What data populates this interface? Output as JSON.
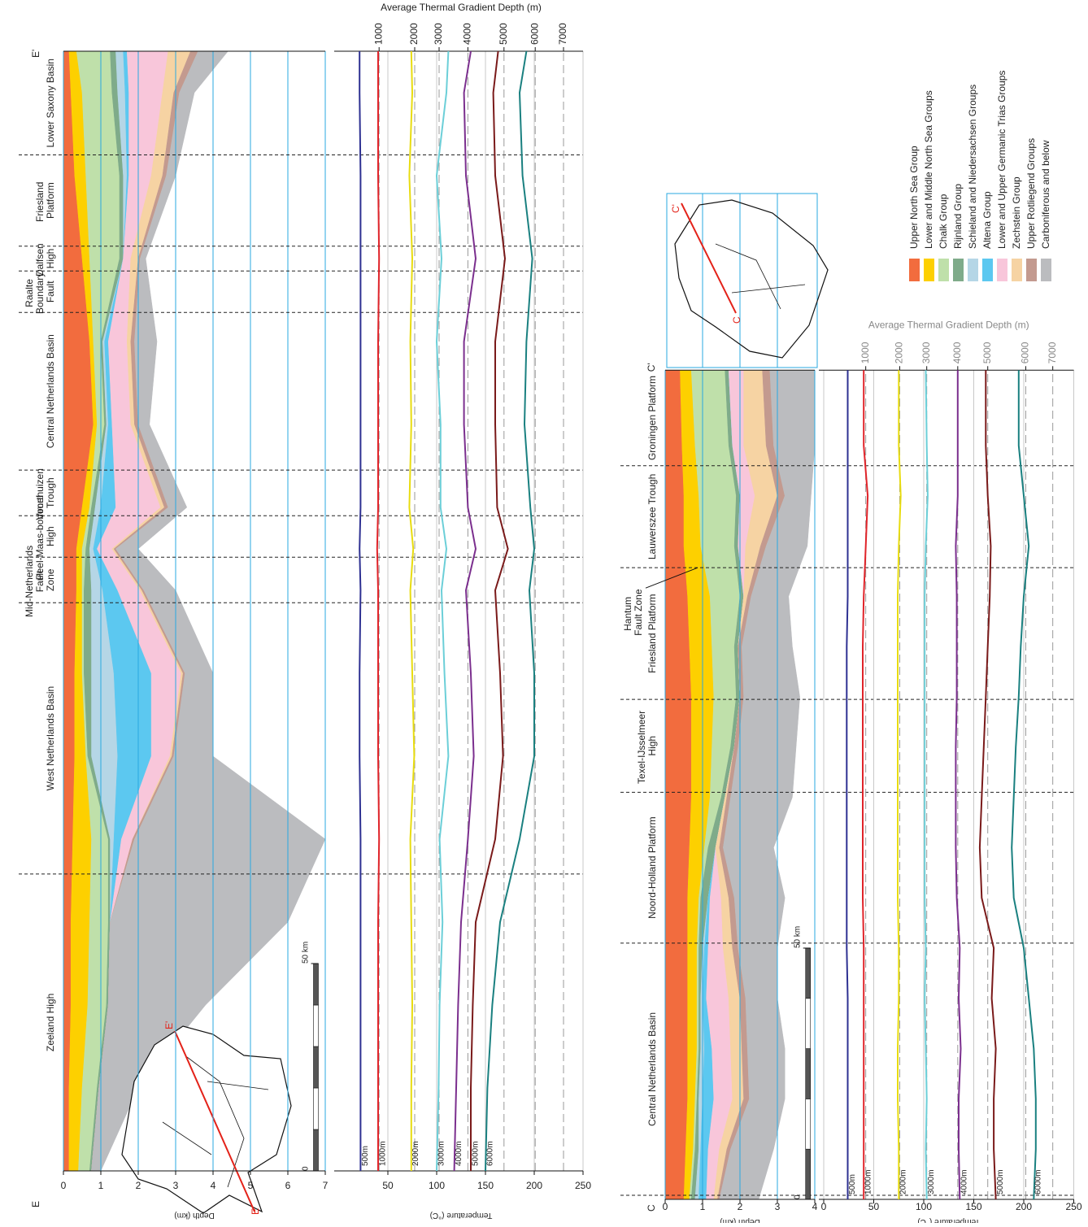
{
  "legend": {
    "layers": [
      {
        "name": "Upper North Sea Group",
        "color": "#f26c3e"
      },
      {
        "name": "Lower and Middle North Sea Groups",
        "color": "#fdd000"
      },
      {
        "name": "Chalk Group",
        "color": "#bfe0aa"
      },
      {
        "name": "Rijnland Group",
        "color": "#7fab8a"
      },
      {
        "name": "Schieland and Niedersachsen Groups",
        "color": "#b5d6e6"
      },
      {
        "name": "Altena Group",
        "color": "#5cc8f0"
      },
      {
        "name": "Lower and Upper Germanic Trias Groups",
        "color": "#f8c6da"
      },
      {
        "name": "Zechstein Group",
        "color": "#f6d3a3"
      },
      {
        "name": "Upper Rotliegend Groups",
        "color": "#c39a8f"
      },
      {
        "name": "Carboniferous and below",
        "color": "#bbbcbf"
      }
    ]
  },
  "chart_data": [
    {
      "type": "cross-section",
      "start_label": "E",
      "end_label": "E'",
      "x": [
        0,
        20,
        40,
        60,
        80,
        100,
        120,
        140,
        150,
        160,
        180,
        200,
        220,
        240,
        260,
        270
      ],
      "xlim": [
        0,
        270
      ],
      "ylabel": "Depth (km)",
      "ylim": [
        0,
        7
      ],
      "yticks": [
        0,
        1,
        2,
        3,
        4,
        5,
        6,
        7
      ],
      "grid": true,
      "layer_thickness": [
        [
          0.15,
          0.15,
          0.2,
          0.2,
          0.25,
          0.3,
          0.3,
          0.35,
          0.35,
          0.5,
          0.8,
          0.7,
          0.5,
          0.3,
          0.2,
          0.15
        ],
        [
          0.25,
          0.35,
          0.45,
          0.5,
          0.5,
          0.3,
          0.2,
          0.15,
          0.15,
          0.2,
          0.1,
          0.1,
          0.2,
          0.3,
          0.3,
          0.2
        ],
        [
          0.3,
          0.4,
          0.5,
          0.5,
          0.45,
          0.05,
          0.05,
          0.05,
          0.1,
          0.05,
          0.2,
          0.2,
          0.8,
          0.9,
          0.8,
          0.9
        ],
        [
          0.05,
          0.05,
          0.05,
          0.05,
          0.05,
          0.1,
          0.2,
          0.2,
          0.1,
          0.1,
          0.05,
          0.05,
          0.1,
          0.1,
          0.15,
          0.15
        ],
        [
          0,
          0,
          0,
          0,
          0.1,
          0.7,
          0.6,
          0.3,
          0.1,
          0.15,
          0.05,
          0.05,
          0,
          0.1,
          0.2,
          0.2
        ],
        [
          0,
          0,
          0,
          0,
          0.2,
          0.9,
          1.0,
          0.4,
          0.1,
          0.4,
          0.1,
          0.1,
          0,
          0.05,
          0.1,
          0.1
        ],
        [
          0,
          0,
          0,
          0,
          0.3,
          0.5,
          0.8,
          0.6,
          0.4,
          1.2,
          0.5,
          0.5,
          0.2,
          0.6,
          0.9,
          1.1
        ],
        [
          0,
          0,
          0,
          0,
          0,
          0.05,
          0.05,
          0.05,
          0.05,
          0.1,
          0.1,
          0.1,
          0.2,
          0.3,
          0.3,
          0.6
        ],
        [
          0,
          0,
          0,
          0,
          0.05,
          0.05,
          0.05,
          0.05,
          0.05,
          0.1,
          0.1,
          0.1,
          0.05,
          0.1,
          0.15,
          0.2
        ],
        [
          0.25,
          1.05,
          2.6,
          4.75,
          5.1,
          1.05,
          0.75,
          0.85,
          0.6,
          0.5,
          0.3,
          0.6,
          0.15,
          0.25,
          0.4,
          0.8
        ]
      ],
      "boundaries": [
        71.6,
        137,
        148,
        158,
        169,
        207,
        217,
        223,
        245
      ],
      "regions": [
        "Zeeland High",
        "West Netherlands Basin",
        "Mid-Netherlands Fault Zone",
        "Peel-Maas-bommel High",
        "Voorthuizen Trough",
        "Central Netherlands Basin",
        "Raalte Boundary Fault",
        "Dalfsen High",
        "Friesland Platform",
        "Lower Saxony Basin"
      ],
      "scale_ticks": [
        0,
        {
          "value": 50,
          "label": "50 km"
        }
      ],
      "temperature": {
        "ylabel": "Temperature (°C)",
        "ylim": [
          0,
          250
        ],
        "yticks": [
          50,
          100,
          150,
          200,
          250
        ],
        "top_axis_label": "Average Thermal Gradient Depth (m)",
        "top_ticks": [
          {
            "value": 41,
            "label": "1000"
          },
          {
            "value": 77.5,
            "label": "2000"
          },
          {
            "value": 102.5,
            "label": "3000"
          },
          {
            "value": 132,
            "label": "4000"
          },
          {
            "value": 169,
            "label": "5000"
          },
          {
            "value": 201,
            "label": "6000"
          },
          {
            "value": 230,
            "label": "7000"
          }
        ],
        "series": [
          {
            "name": "500m",
            "color": "#2e3192",
            "values": [
              22,
              22,
              22,
              22,
              22,
              21,
              21,
              22,
              21,
              22,
              22,
              22,
              22,
              22,
              21,
              21
            ]
          },
          {
            "name": "1000m",
            "color": "#e0242a",
            "values": [
              40,
              40,
              40,
              40,
              41,
              40,
              40,
              40,
              39,
              40,
              40,
              40,
              41,
              40,
              40,
              40
            ]
          },
          {
            "name": "2000m",
            "color": "#e8dc10",
            "values": [
              74,
              74,
              75,
              74,
              73,
              77,
              75,
              73,
              76,
              72,
              74,
              73,
              75,
              72,
              75,
              74
            ]
          },
          {
            "name": "3000m",
            "color": "#6ccfd8",
            "values": [
              100,
              102,
              103,
              106,
              103,
              112,
              108,
              105,
              110,
              104,
              104,
              100,
              105,
              100,
              110,
              112
            ]
          },
          {
            "name": "4000m",
            "color": "#7b2f8e",
            "values": [
              118,
              120,
              122,
              125,
              132,
              138,
              135,
              130,
              140,
              132,
              128,
              128,
              140,
              130,
              128,
              135
            ]
          },
          {
            "name": "5000m",
            "color": "#7a1a1a",
            "values": [
              135,
              135,
              137,
              140,
              160,
              168,
              165,
              160,
              173,
              162,
              160,
              160,
              170,
              160,
              158,
              163
            ]
          },
          {
            "name": "6000m",
            "color": "#1a8080",
            "values": [
              150,
              152,
              157,
              165,
              185,
              200,
              200,
              195,
              200,
              196,
              190,
              192,
              198,
              188,
              185,
              192
            ]
          }
        ]
      }
    },
    {
      "type": "cross-section",
      "start_label": "C",
      "end_label": "C'",
      "x": [
        0,
        10,
        20,
        30,
        40,
        50,
        60,
        70,
        80,
        90,
        100,
        110,
        120,
        130,
        140,
        150,
        165
      ],
      "xlim": [
        0,
        165
      ],
      "ylabel": "Depth (km)",
      "ylim": [
        0,
        4
      ],
      "yticks": [
        0,
        1,
        2,
        3,
        4
      ],
      "grid": true,
      "layer_thickness": [
        [
          0.5,
          0.55,
          0.6,
          0.6,
          0.6,
          0.6,
          0.6,
          0.65,
          0.7,
          0.7,
          0.7,
          0.65,
          0.6,
          0.5,
          0.5,
          0.45,
          0.4
        ],
        [
          0.15,
          0.2,
          0.2,
          0.25,
          0.25,
          0.25,
          0.3,
          0.4,
          0.5,
          0.55,
          0.6,
          0.6,
          0.6,
          0.45,
          0.4,
          0.35,
          0.3
        ],
        [
          0.05,
          0.05,
          0.05,
          0.05,
          0.05,
          0.05,
          0.05,
          0.1,
          0.3,
          0.5,
          0.6,
          0.6,
          0.8,
          0.9,
          1.0,
          0.9,
          0.9
        ],
        [
          0.1,
          0.1,
          0.05,
          0.05,
          0.05,
          0.1,
          0.2,
          0.2,
          0.1,
          0.1,
          0.1,
          0.1,
          0.1,
          0.1,
          0.1,
          0.1,
          0.1
        ],
        [
          0.1,
          0.05,
          0.1,
          0.1,
          0.05,
          0.05,
          0,
          0,
          0,
          0,
          0,
          0,
          0,
          0,
          0,
          0,
          0
        ],
        [
          0.2,
          0.2,
          0.3,
          0.2,
          0.1,
          0.1,
          0.05,
          0,
          0,
          0,
          0,
          0,
          0,
          0,
          0,
          0,
          0
        ],
        [
          0.2,
          0.3,
          0.5,
          0.5,
          0.6,
          0.4,
          0.3,
          0,
          0,
          0,
          0,
          0,
          0,
          0.2,
          0.4,
          0.3,
          0.4
        ],
        [
          0.1,
          0.2,
          0.3,
          0.3,
          0.3,
          0.25,
          0.2,
          0.1,
          0.05,
          0,
          0,
          0,
          0.1,
          0.4,
          0.6,
          0.6,
          0.5
        ],
        [
          0.05,
          0.1,
          0.15,
          0.15,
          0.15,
          0.15,
          0.15,
          0.1,
          0.1,
          0.1,
          0.1,
          0.1,
          0.1,
          0.15,
          0.2,
          0.2,
          0.2
        ],
        [
          1.05,
          1.15,
          0.95,
          1.0,
          0.85,
          1.05,
          1.35,
          1.35,
          1.65,
          1.55,
          1.5,
          1.35,
          1.0,
          1.1,
          0.7,
          1.1,
          1.2
        ]
      ],
      "boundaries": [
        0.8,
        51,
        81,
        99.5,
        125.7,
        146
      ],
      "regions": [
        null,
        "Central Netherlands Basin",
        "Noord-Holland Platform",
        "Texel-IJsselmeer High",
        "Friesland Platform",
        "Lauwerszee Trough",
        "Groningen Platform"
      ],
      "annotation": "Hantum Fault Zone",
      "scale_ticks": [
        0,
        {
          "value": 50,
          "label": "50 km"
        }
      ],
      "temperature": {
        "ylabel": "Temperature (°C)",
        "ylim": [
          0,
          250
        ],
        "yticks": [
          0,
          50,
          100,
          150,
          200,
          250
        ],
        "top_axis_label": "Average Thermal Gradient Depth (m)",
        "top_ticks": [
          {
            "value": 42,
            "label": "1000"
          },
          {
            "value": 76,
            "label": "2000"
          },
          {
            "value": 103,
            "label": "3000"
          },
          {
            "value": 134,
            "label": "4000"
          },
          {
            "value": 164,
            "label": "5000"
          },
          {
            "value": 202,
            "label": "6000"
          },
          {
            "value": 229,
            "label": "7000"
          }
        ],
        "series": [
          {
            "name": "500m",
            "color": "#2e3192",
            "values": [
              24,
              24,
              24,
              24,
              24,
              23,
              23,
              23,
              23,
              23,
              23,
              23,
              24,
              24,
              24,
              24,
              24
            ]
          },
          {
            "name": "1000m",
            "color": "#e0242a",
            "values": [
              40,
              40,
              40,
              40,
              40,
              40,
              39,
              39,
              39,
              39,
              39,
              39,
              40,
              42,
              44,
              40,
              40
            ]
          },
          {
            "name": "2000m",
            "color": "#e8dc10",
            "values": [
              75,
              75,
              74,
              74,
              75,
              75,
              74,
              74,
              74,
              74,
              74,
              74,
              74,
              75,
              77,
              75,
              75
            ]
          },
          {
            "name": "3000m",
            "color": "#6ccfd8",
            "values": [
              103,
              102,
              103,
              102,
              101,
              102,
              101,
              101,
              101,
              101,
              101,
              101,
              101,
              102,
              104,
              103,
              102
            ]
          },
          {
            "name": "4000m",
            "color": "#7b2f8e",
            "values": [
              136,
              135,
              135,
              137,
              135,
              136,
              133,
              132,
              132,
              132,
              133,
              133,
              133,
              132,
              134,
              134,
              134
            ]
          },
          {
            "name": "5000m",
            "color": "#7a1a1a",
            "values": [
              172,
              170,
              170,
              172,
              168,
              170,
              158,
              156,
              158,
              160,
              162,
              164,
              166,
              167,
              164,
              162,
              162
            ]
          },
          {
            "name": "6000m",
            "color": "#1a8080",
            "values": [
              210,
              212,
              212,
              210,
              205,
              200,
              190,
              188,
              190,
              192,
              195,
              197,
              200,
              205,
              200,
              195,
              195
            ]
          }
        ]
      }
    }
  ]
}
